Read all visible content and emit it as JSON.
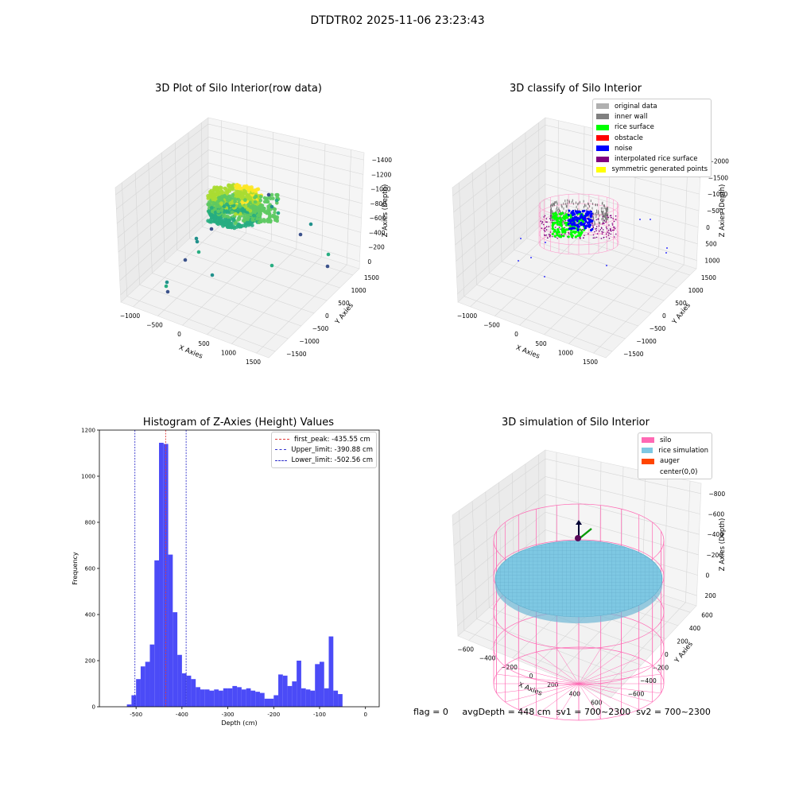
{
  "suptitle": "DTDTR02 2025-11-06 23:23:43",
  "status_text": "flag = 0     avgDepth = 448 cm  sv1 = 700~2300  sv2 = 700~2300",
  "colors": {
    "hist_bar": "#4b4bf7",
    "first_peak": "#e23b3b",
    "limit": "#3333cc",
    "silo": "#ff69b4",
    "rice_sim": "#7ec8e3",
    "auger": "#ff4500"
  },
  "chart_data": [
    {
      "type": "scatter",
      "projection": "3d",
      "title": "3D Plot of Silo Interior(row data)",
      "xlabel": "X Axies",
      "ylabel": "Y Axies",
      "zlabel": "Z Axies (Depth)",
      "x_ticks": [
        "−1000",
        "−500",
        "0",
        "500",
        "1000",
        "1500"
      ],
      "y_ticks": [
        "−1500",
        "−1000",
        "−500",
        "0",
        "500",
        "1000",
        "1500"
      ],
      "z_ticks": [
        "0",
        "−200",
        "−400",
        "−600",
        "−800",
        "−1000",
        "−1200",
        "−1400"
      ],
      "grid": true,
      "colormap": "viridis"
    },
    {
      "type": "scatter",
      "projection": "3d",
      "title": "3D classify of Silo Interior",
      "xlabel": "X Axies",
      "ylabel": "Y Axies",
      "zlabel": "Z Axies (Depth)",
      "x_ticks": [
        "−1000",
        "−500",
        "0",
        "500",
        "1000",
        "1500"
      ],
      "y_ticks": [
        "−1500",
        "−1000",
        "−500",
        "0",
        "500",
        "1000",
        "1500"
      ],
      "z_ticks": [
        "1000",
        "500",
        "0",
        "−500",
        "−1000",
        "−1500",
        "−2000"
      ],
      "grid": true,
      "legend_position": "top-right",
      "legend": [
        {
          "label": "original data",
          "color": "#b0b0b0"
        },
        {
          "label": "inner wall",
          "color": "#808080"
        },
        {
          "label": "rice surface",
          "color": "#00ff00"
        },
        {
          "label": "obstacle",
          "color": "#ff0000"
        },
        {
          "label": "noise",
          "color": "#0000ff"
        },
        {
          "label": "interpolated rice surface",
          "color": "#800080"
        },
        {
          "label": "symmetric generated points",
          "color": "#ffff00"
        }
      ]
    },
    {
      "type": "bar",
      "title": "Histogram of Z-Axies (Height) Values",
      "xlabel": "Depth (cm)",
      "ylabel": "Frequency",
      "xlim": [
        -580,
        30
      ],
      "ylim": [
        0,
        1200
      ],
      "x_ticks": [
        -500,
        -400,
        -300,
        -200,
        -100,
        0
      ],
      "y_ticks": [
        0,
        200,
        400,
        600,
        800,
        1000,
        1200
      ],
      "bin_width": 10,
      "bins": [
        [
          -520,
          10
        ],
        [
          -510,
          50
        ],
        [
          -500,
          120
        ],
        [
          -490,
          175
        ],
        [
          -480,
          195
        ],
        [
          -470,
          270
        ],
        [
          -460,
          635
        ],
        [
          -450,
          1145
        ],
        [
          -440,
          1140
        ],
        [
          -430,
          660
        ],
        [
          -420,
          410
        ],
        [
          -410,
          225
        ],
        [
          -400,
          145
        ],
        [
          -390,
          135
        ],
        [
          -380,
          120
        ],
        [
          -370,
          85
        ],
        [
          -360,
          75
        ],
        [
          -350,
          75
        ],
        [
          -340,
          70
        ],
        [
          -330,
          75
        ],
        [
          -320,
          70
        ],
        [
          -310,
          80
        ],
        [
          -300,
          80
        ],
        [
          -290,
          90
        ],
        [
          -280,
          85
        ],
        [
          -270,
          75
        ],
        [
          -260,
          80
        ],
        [
          -250,
          70
        ],
        [
          -240,
          65
        ],
        [
          -230,
          60
        ],
        [
          -220,
          35
        ],
        [
          -210,
          35
        ],
        [
          -200,
          50
        ],
        [
          -190,
          140
        ],
        [
          -180,
          135
        ],
        [
          -170,
          90
        ],
        [
          -160,
          110
        ],
        [
          -150,
          200
        ],
        [
          -140,
          80
        ],
        [
          -130,
          75
        ],
        [
          -120,
          70
        ],
        [
          -110,
          185
        ],
        [
          -100,
          195
        ],
        [
          -90,
          80
        ],
        [
          -80,
          305
        ],
        [
          -70,
          70
        ],
        [
          -60,
          55
        ]
      ],
      "bin_offset": 0,
      "lines": [
        {
          "label": "first_peak: -435.55 cm",
          "x": -435.55,
          "color": "#e23b3b"
        },
        {
          "label": "Upper_limit: -390.88 cm",
          "x": -390.88,
          "color": "#3333cc"
        },
        {
          "label": "Lower_limit: -502.56 cm",
          "x": -502.56,
          "color": "#3333cc"
        }
      ],
      "legend_position": "top-right"
    },
    {
      "type": "surface",
      "projection": "3d",
      "title": "3D simulation of Silo Interior",
      "xlabel": "X Axies",
      "ylabel": "Y Axies",
      "zlabel": "Z Axies (Depth)",
      "x_ticks": [
        "−600",
        "−400",
        "−200",
        "0",
        "200",
        "400",
        "600"
      ],
      "y_ticks": [
        "−600",
        "−400",
        "−200",
        "0",
        "200",
        "400",
        "600"
      ],
      "z_ticks": [
        "200",
        "0",
        "−200",
        "−400",
        "−600",
        "−800"
      ],
      "grid": true,
      "legend_position": "top-right",
      "legend": [
        {
          "label": "silo",
          "color": "#ff69b4"
        },
        {
          "label": "rice simulation",
          "color": "#7ec8e3"
        },
        {
          "label": "auger",
          "color": "#ff4500"
        },
        {
          "label": "center(0,0)",
          "color": ""
        }
      ]
    }
  ]
}
